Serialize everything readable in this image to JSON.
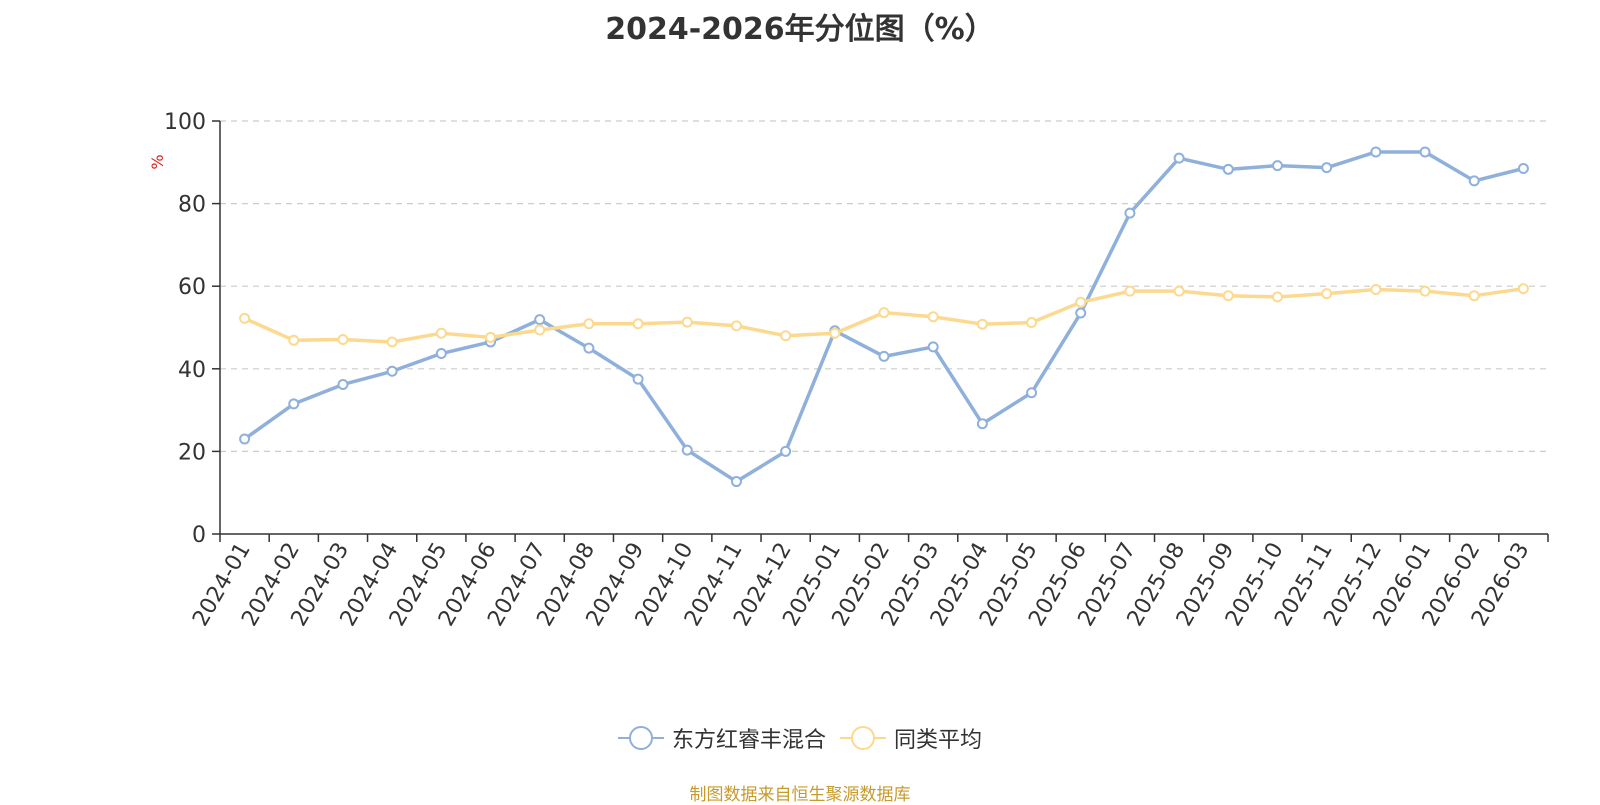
{
  "chart_data": {
    "type": "line",
    "title": "2024-2026年分位图（%）",
    "ylabel": "%",
    "xlabel": "",
    "ylim": [
      0,
      100
    ],
    "yticks": [
      0,
      20,
      40,
      60,
      80,
      100
    ],
    "grid": true,
    "legend_position": "bottom",
    "categories": [
      "2024-01",
      "2024-02",
      "2024-03",
      "2024-04",
      "2024-05",
      "2024-06",
      "2024-07",
      "2024-08",
      "2024-09",
      "2024-10",
      "2024-11",
      "2024-12",
      "2025-01",
      "2025-02",
      "2025-03",
      "2025-04",
      "2025-05",
      "2025-06",
      "2025-07",
      "2025-08",
      "2025-09",
      "2025-10",
      "2025-11",
      "2025-12",
      "2026-01",
      "2026-02",
      "2026-03"
    ],
    "series": [
      {
        "name": "东方红睿丰混合",
        "color": "#8eb0db",
        "values": [
          23.0,
          31.5,
          36.2,
          39.4,
          43.7,
          46.5,
          51.9,
          45.0,
          37.5,
          20.3,
          12.7,
          20.0,
          49.2,
          43.0,
          45.3,
          26.7,
          34.2,
          53.5,
          77.7,
          91.0,
          88.3,
          89.2,
          88.7,
          92.5,
          92.5,
          85.5,
          88.5
        ]
      },
      {
        "name": "同类平均",
        "color": "#fcd98f",
        "values": [
          52.2,
          46.9,
          47.1,
          46.5,
          48.6,
          47.6,
          49.4,
          50.9,
          50.9,
          51.3,
          50.4,
          48.0,
          48.6,
          53.6,
          52.6,
          50.8,
          51.2,
          56.1,
          58.8,
          58.8,
          57.7,
          57.4,
          58.2,
          59.2,
          58.8,
          57.7,
          59.4
        ]
      }
    ]
  },
  "source_text": "制图数据来自恒生聚源数据库"
}
